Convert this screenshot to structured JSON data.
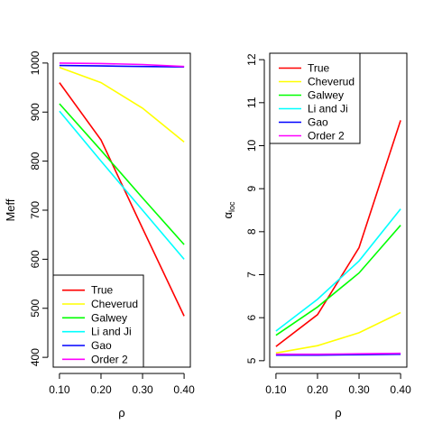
{
  "chart_data": [
    {
      "type": "line",
      "title": "",
      "xlabel": "ρ",
      "ylabel": "Meff",
      "x": [
        0.1,
        0.2,
        0.3,
        0.4
      ],
      "x_ticks": [
        "0.10",
        "0.20",
        "0.30",
        "0.40"
      ],
      "xlim": [
        0.085,
        0.415
      ],
      "ylim": [
        380,
        1020
      ],
      "y_ticks": [
        400,
        500,
        600,
        700,
        800,
        900,
        1000
      ],
      "grid": false,
      "legend_position": "bottom-left",
      "series": [
        {
          "name": "True",
          "color": "#ff0000",
          "values": [
            960,
            843,
            663,
            484
          ]
        },
        {
          "name": "Cheverud",
          "color": "#ffff00",
          "values": [
            991,
            960,
            908,
            839
          ]
        },
        {
          "name": "Galwey",
          "color": "#00ff00",
          "values": [
            917,
            822,
            725,
            630
          ]
        },
        {
          "name": "Li and Ji",
          "color": "#00ffff",
          "values": [
            902,
            800,
            700,
            600
          ]
        },
        {
          "name": "Gao",
          "color": "#0000ff",
          "values": [
            995,
            994,
            993,
            992
          ]
        },
        {
          "name": "Order 2",
          "color": "#ff00ff",
          "values": [
            1000,
            999,
            997,
            993
          ]
        }
      ]
    },
    {
      "type": "line",
      "title": "",
      "xlabel": "ρ",
      "ylabel": "α_loc",
      "ylabel_main": "α",
      "ylabel_sub": "loc",
      "x": [
        0.1,
        0.2,
        0.3,
        0.4
      ],
      "x_ticks": [
        "0.10",
        "0.20",
        "0.30",
        "0.40"
      ],
      "xlim": [
        0.085,
        0.415
      ],
      "ylim": [
        4.85,
        12.15
      ],
      "y_ticks": [
        5,
        6,
        7,
        8,
        9,
        10,
        11,
        12
      ],
      "grid": false,
      "legend_position": "top-left",
      "series": [
        {
          "name": "True",
          "color": "#ff0000",
          "values": [
            5.33,
            6.07,
            7.63,
            10.59
          ]
        },
        {
          "name": "Cheverud",
          "color": "#ffff00",
          "values": [
            5.18,
            5.35,
            5.65,
            6.12
          ]
        },
        {
          "name": "Galwey",
          "color": "#00ff00",
          "values": [
            5.59,
            6.25,
            7.04,
            8.15
          ]
        },
        {
          "name": "Li and Ji",
          "color": "#00ffff",
          "values": [
            5.69,
            6.43,
            7.32,
            8.53
          ]
        },
        {
          "name": "Gao",
          "color": "#0000ff",
          "values": [
            5.13,
            5.13,
            5.14,
            5.15
          ]
        },
        {
          "name": "Order 2",
          "color": "#ff00ff",
          "values": [
            5.15,
            5.15,
            5.16,
            5.17
          ]
        }
      ]
    }
  ]
}
